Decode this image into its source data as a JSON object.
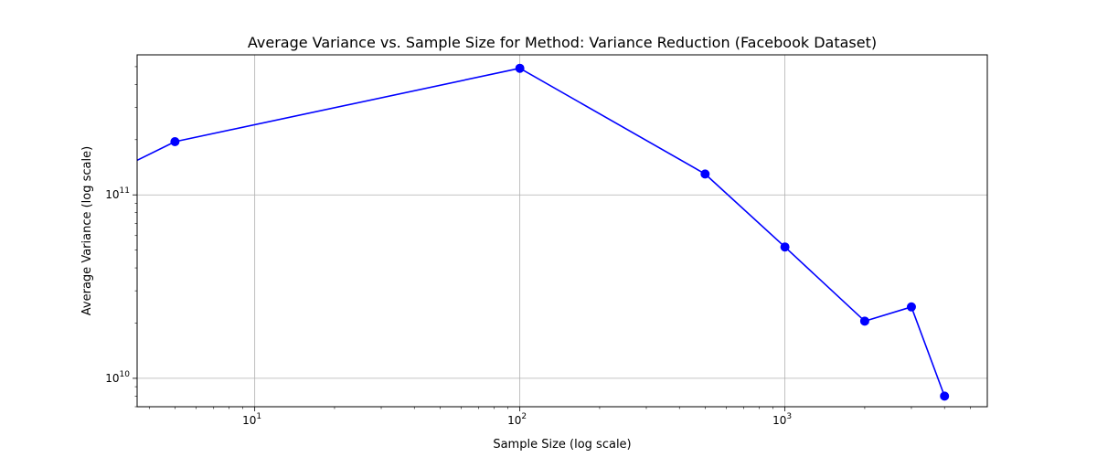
{
  "chart_data": {
    "type": "line",
    "title": "Average Variance vs. Sample Size for Method: Variance Reduction (Facebook Dataset)",
    "xlabel": "Sample Size (log scale)",
    "ylabel": "Average Variance (log scale)",
    "x_scale": "log",
    "y_scale": "log",
    "xlim": [
      3.6,
      5800
    ],
    "ylim": [
      7000000000,
      580000000000
    ],
    "x_ticks": [
      {
        "value": 10,
        "base": "10",
        "exp": "1"
      },
      {
        "value": 100,
        "base": "10",
        "exp": "2"
      },
      {
        "value": 1000,
        "base": "10",
        "exp": "3"
      }
    ],
    "y_ticks": [
      {
        "value": 10000000000,
        "base": "10",
        "exp": "10"
      },
      {
        "value": 100000000000,
        "base": "10",
        "exp": "11"
      }
    ],
    "grid": true,
    "series": [
      {
        "color": "#0000ff",
        "marker": "circle",
        "points": [
          {
            "x": 1,
            "y": 62000000000,
            "marker": false
          },
          {
            "x": 5,
            "y": 195000000000,
            "marker": true
          },
          {
            "x": 100,
            "y": 490000000000,
            "marker": true
          },
          {
            "x": 500,
            "y": 130000000000,
            "marker": true
          },
          {
            "x": 1000,
            "y": 52000000000,
            "marker": true
          },
          {
            "x": 2000,
            "y": 20500000000,
            "marker": true
          },
          {
            "x": 3000,
            "y": 24500000000,
            "marker": true
          },
          {
            "x": 4000,
            "y": 8000000000,
            "marker": true
          }
        ]
      }
    ]
  }
}
